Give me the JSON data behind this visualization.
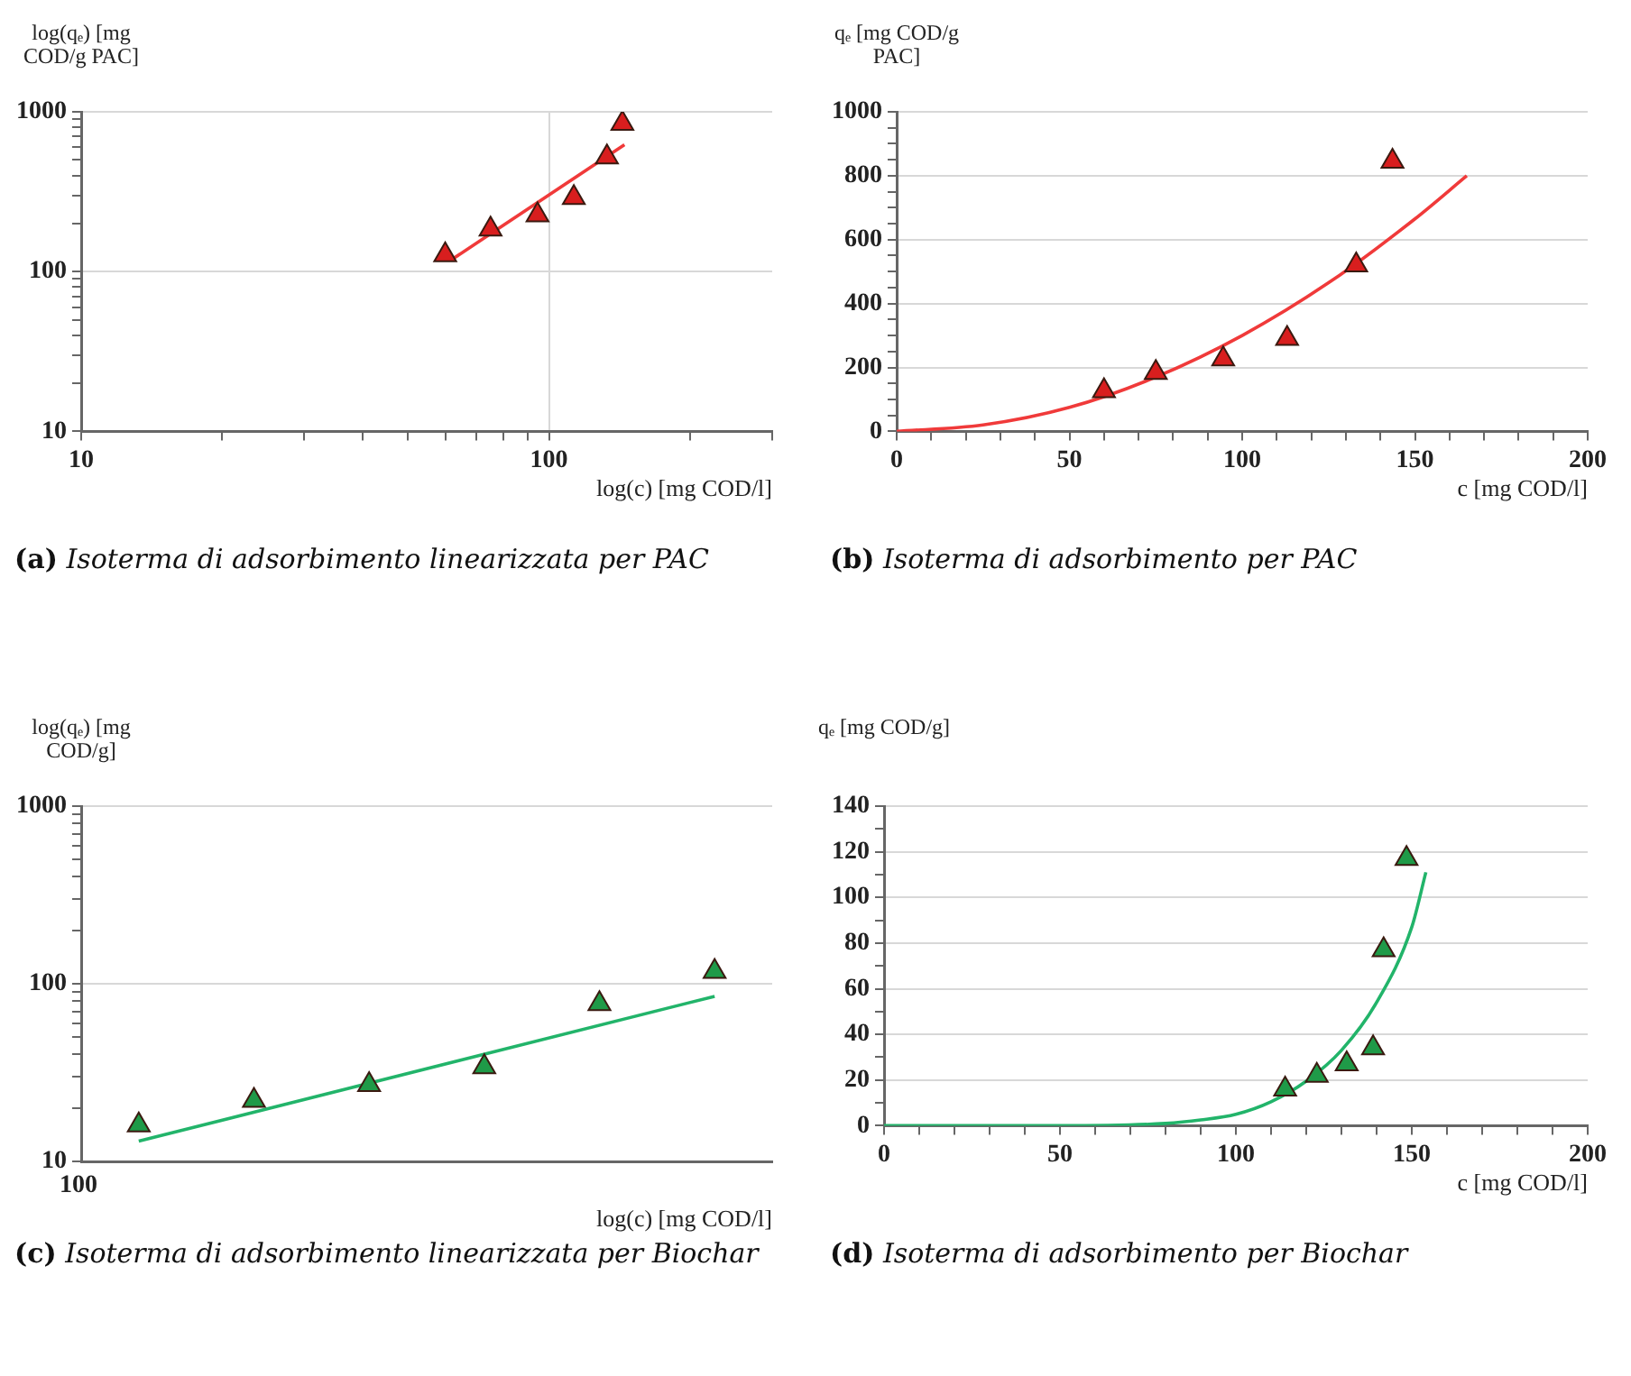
{
  "chart_data": [
    {
      "type": "scatter",
      "title": "(a) Isoterma di adsorbimento linearizzata per PAC",
      "xlabel": "log(c) [mg COD/l]",
      "ylabel": "log(qₑ) [mg COD/g PAC]",
      "log": "xy",
      "grid": true,
      "marker": "triangle",
      "xlim": [
        10,
        300
      ],
      "xticks": [
        10,
        {
          "value": 20,
          "label": null
        },
        {
          "value": 30,
          "label": null
        },
        {
          "value": 40,
          "label": null
        },
        {
          "value": 50,
          "label": null
        },
        {
          "value": 60,
          "label": null
        },
        {
          "value": 70,
          "label": null
        },
        {
          "value": 80,
          "label": null
        },
        {
          "value": 90,
          "label": null
        },
        100,
        {
          "value": 200,
          "label": null
        },
        {
          "value": 300,
          "label": null
        }
      ],
      "ylim": [
        10,
        1000
      ],
      "yticks": [
        10,
        {
          "value": 20,
          "label": null
        },
        {
          "value": 30,
          "label": null
        },
        {
          "value": 40,
          "label": null
        },
        {
          "value": 50,
          "label": null
        },
        {
          "value": 60,
          "label": null
        },
        {
          "value": 70,
          "label": null
        },
        {
          "value": 80,
          "label": null
        },
        {
          "value": 90,
          "label": null
        },
        100,
        {
          "value": 200,
          "label": null
        },
        {
          "value": 300,
          "label": null
        },
        {
          "value": 400,
          "label": null
        },
        {
          "value": 500,
          "label": null
        },
        {
          "value": 600,
          "label": null
        },
        {
          "value": 700,
          "label": null
        },
        {
          "value": 800,
          "label": null
        },
        {
          "value": 900,
          "label": null
        },
        1000
      ],
      "series": [
        {
          "type": "line",
          "marker": "none",
          "color": "#f03a3a",
          "x": [
            62,
            145
          ],
          "values": [
            119,
            623
          ]
        },
        {
          "type": "scatter",
          "color": "#d81e1e",
          "x": [
            60,
            75,
            94.5,
            113,
            133,
            143.5
          ],
          "values": [
            127,
            184,
            226,
            290,
            520,
            845
          ]
        }
      ]
    },
    {
      "type": "scatter",
      "title": "(b) Isoterma di adsorbimento per PAC",
      "xlabel": "c [mg COD/l]",
      "ylabel": "qₑ [mg COD/g PAC]",
      "grid": "y",
      "marker": "triangle",
      "xlim": [
        0,
        200
      ],
      "xticks": [
        0,
        {
          "value": 10,
          "label": null
        },
        {
          "value": 20,
          "label": null
        },
        {
          "value": 30,
          "label": null
        },
        {
          "value": 40,
          "label": null
        },
        50,
        {
          "value": 60,
          "label": null
        },
        {
          "value": 70,
          "label": null
        },
        {
          "value": 80,
          "label": null
        },
        {
          "value": 90,
          "label": null
        },
        100,
        {
          "value": 110,
          "label": null
        },
        {
          "value": 120,
          "label": null
        },
        {
          "value": 130,
          "label": null
        },
        {
          "value": 140,
          "label": null
        },
        150,
        {
          "value": 160,
          "label": null
        },
        {
          "value": 170,
          "label": null
        },
        {
          "value": 180,
          "label": null
        },
        {
          "value": 190,
          "label": null
        },
        200
      ],
      "ylim": [
        0,
        1000
      ],
      "yticks": [
        0,
        {
          "value": 50,
          "label": null
        },
        {
          "value": 100,
          "label": null
        },
        {
          "value": 150,
          "label": null
        },
        200,
        {
          "value": 250,
          "label": null
        },
        {
          "value": 300,
          "label": null
        },
        {
          "value": 350,
          "label": null
        },
        400,
        {
          "value": 450,
          "label": null
        },
        {
          "value": 500,
          "label": null
        },
        {
          "value": 550,
          "label": null
        },
        600,
        {
          "value": 650,
          "label": null
        },
        {
          "value": 700,
          "label": null
        },
        {
          "value": 750,
          "label": null
        },
        800,
        {
          "value": 850,
          "label": null
        },
        {
          "value": 900,
          "label": null
        },
        {
          "value": 950,
          "label": null
        },
        1000
      ],
      "series": [
        {
          "type": "line",
          "marker": "none",
          "color": "#f03a3a",
          "x": [
            0,
            25,
            50,
            75,
            100,
            125,
            150,
            165
          ],
          "values": [
            0,
            20,
            75,
            170,
            300,
            465,
            665,
            800
          ]
        },
        {
          "type": "scatter",
          "color": "#d81e1e",
          "x": [
            60,
            75,
            94.5,
            113,
            133,
            143.5
          ],
          "values": [
            127,
            184,
            226,
            290,
            520,
            845
          ]
        }
      ]
    },
    {
      "type": "scatter",
      "title": "(c) Isoterma di adsorbimento linearizzata per Biochar",
      "xlabel": "log(c) [mg COD/l]",
      "ylabel": "log(qₑ) [mg COD/g]",
      "log": "xy",
      "grid": "y",
      "marker": "triangle",
      "categories": [
        null,
        null,
        null,
        null,
        null,
        null
      ],
      "annotations": [
        "100"
      ],
      "ylim": [
        10,
        1000
      ],
      "yticks": [
        10,
        {
          "value": 20,
          "label": null
        },
        {
          "value": 30,
          "label": null
        },
        {
          "value": 40,
          "label": null
        },
        {
          "value": 50,
          "label": null
        },
        {
          "value": 60,
          "label": null
        },
        {
          "value": 70,
          "label": null
        },
        {
          "value": 80,
          "label": null
        },
        {
          "value": 90,
          "label": null
        },
        100,
        {
          "value": 200,
          "label": null
        },
        {
          "value": 300,
          "label": null
        },
        {
          "value": 400,
          "label": null
        },
        {
          "value": 500,
          "label": null
        },
        {
          "value": 600,
          "label": null
        },
        {
          "value": 700,
          "label": null
        },
        {
          "value": 800,
          "label": null
        },
        {
          "value": 900,
          "label": null
        },
        1000
      ],
      "series": [
        {
          "type": "line",
          "marker": "none",
          "color": "#22b46a",
          "values": [
            13,
            null,
            null,
            null,
            null,
            85
          ]
        },
        {
          "type": "scatter",
          "color": "#1f9a48",
          "values": [
            16,
            22,
            27,
            34,
            77,
            117
          ]
        }
      ]
    },
    {
      "type": "scatter",
      "title": "(d) Isoterma di adsorbimento per Biochar",
      "xlabel": "c [mg COD/l]",
      "ylabel": "qₑ [mg COD/g]",
      "grid": "y",
      "marker": "triangle",
      "xlim": [
        0,
        200
      ],
      "xticks": [
        0,
        {
          "value": 10,
          "label": null
        },
        {
          "value": 20,
          "label": null
        },
        {
          "value": 30,
          "label": null
        },
        {
          "value": 40,
          "label": null
        },
        50,
        {
          "value": 60,
          "label": null
        },
        {
          "value": 70,
          "label": null
        },
        {
          "value": 80,
          "label": null
        },
        {
          "value": 90,
          "label": null
        },
        100,
        {
          "value": 110,
          "label": null
        },
        {
          "value": 120,
          "label": null
        },
        {
          "value": 130,
          "label": null
        },
        {
          "value": 140,
          "label": null
        },
        150,
        {
          "value": 160,
          "label": null
        },
        {
          "value": 170,
          "label": null
        },
        {
          "value": 180,
          "label": null
        },
        {
          "value": 190,
          "label": null
        },
        200
      ],
      "ylim": [
        0,
        140
      ],
      "yticks": [
        0,
        {
          "value": 10,
          "label": null
        },
        20,
        {
          "value": 30,
          "label": null
        },
        40,
        {
          "value": 50,
          "label": null
        },
        60,
        {
          "value": 70,
          "label": null
        },
        80,
        {
          "value": 90,
          "label": null
        },
        100,
        {
          "value": 110,
          "label": null
        },
        120,
        {
          "value": 130,
          "label": null
        },
        140
      ],
      "series": [
        {
          "type": "line",
          "marker": "none",
          "color": "#22b46a",
          "x": [
            0,
            50,
            80,
            90,
            100,
            110,
            120,
            130,
            140,
            150,
            154
          ],
          "values": [
            0,
            0,
            1,
            2.5,
            5,
            10.5,
            19.5,
            33,
            54,
            87,
            111
          ]
        },
        {
          "type": "scatter",
          "color": "#1f9a48",
          "x": [
            114,
            123,
            131.5,
            139,
            142,
            148.5
          ],
          "values": [
            16,
            22,
            27,
            34,
            77,
            117
          ]
        }
      ]
    }
  ]
}
